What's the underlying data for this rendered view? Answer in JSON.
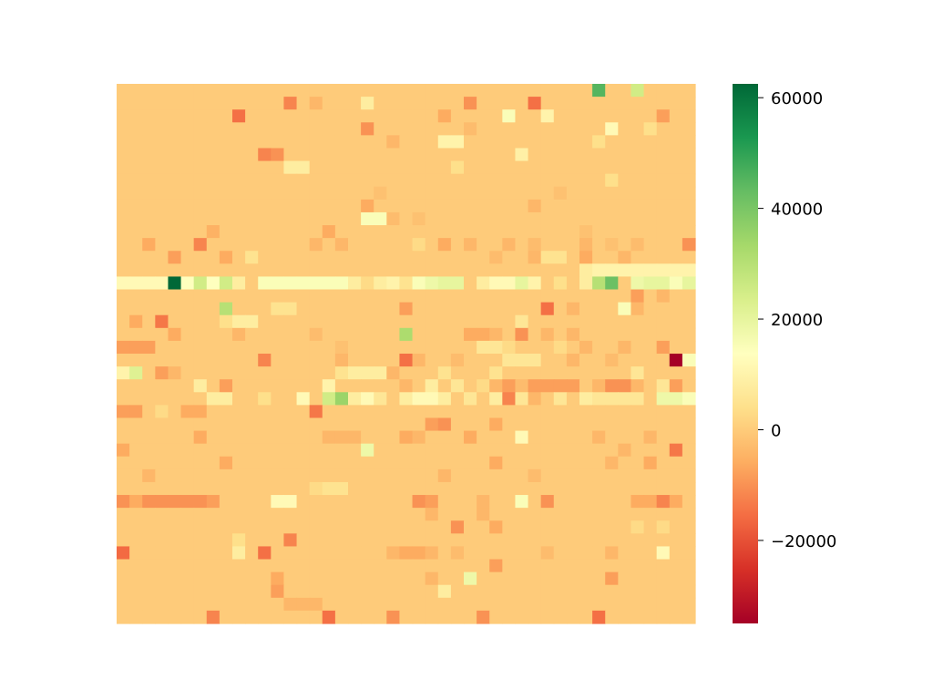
{
  "chart_data": {
    "type": "heatmap",
    "title": "",
    "xlabel": "",
    "ylabel": "",
    "colormap": "RdYlGn",
    "value_range": [
      -35000,
      62500
    ],
    "colorbar": {
      "ticks": [
        60000,
        40000,
        20000,
        0,
        -20000
      ],
      "tick_labels": [
        "60000",
        "40000",
        "20000",
        "0",
        "−20000"
      ]
    },
    "grid": false,
    "legend": "colorbar-right",
    "n_rows": 42,
    "n_cols": 45,
    "base_value": 0,
    "cells": [
      [
        0,
        37,
        45000
      ],
      [
        0,
        40,
        25000
      ],
      [
        1,
        13,
        -12000
      ],
      [
        1,
        15,
        -4000
      ],
      [
        1,
        19,
        8000
      ],
      [
        1,
        27,
        -10000
      ],
      [
        1,
        32,
        -15000
      ],
      [
        2,
        9,
        -15000
      ],
      [
        2,
        25,
        -6000
      ],
      [
        2,
        30,
        15000
      ],
      [
        2,
        33,
        10000
      ],
      [
        2,
        42,
        -8000
      ],
      [
        3,
        19,
        -10000
      ],
      [
        3,
        27,
        -3000
      ],
      [
        3,
        38,
        12000
      ],
      [
        3,
        41,
        4000
      ],
      [
        4,
        21,
        -4000
      ],
      [
        4,
        25,
        10000
      ],
      [
        4,
        26,
        10000
      ],
      [
        4,
        37,
        4000
      ],
      [
        5,
        11,
        -12000
      ],
      [
        5,
        12,
        -10000
      ],
      [
        5,
        31,
        9000
      ],
      [
        6,
        13,
        8000
      ],
      [
        6,
        14,
        8000
      ],
      [
        6,
        26,
        4000
      ],
      [
        7,
        38,
        4000
      ],
      [
        8,
        20,
        -2000
      ],
      [
        8,
        34,
        -2000
      ],
      [
        9,
        19,
        -6000
      ],
      [
        9,
        32,
        -4000
      ],
      [
        10,
        19,
        15000
      ],
      [
        10,
        20,
        15000
      ],
      [
        10,
        21,
        -3000
      ],
      [
        10,
        23,
        -2000
      ],
      [
        11,
        7,
        -5000
      ],
      [
        11,
        16,
        -6000
      ],
      [
        11,
        36,
        -2000
      ],
      [
        12,
        2,
        -6000
      ],
      [
        12,
        6,
        -12000
      ],
      [
        12,
        15,
        -4000
      ],
      [
        12,
        17,
        -4000
      ],
      [
        12,
        23,
        3000
      ],
      [
        12,
        25,
        -6000
      ],
      [
        12,
        27,
        -4000
      ],
      [
        12,
        30,
        -4000
      ],
      [
        12,
        32,
        -3000
      ],
      [
        12,
        36,
        -4000
      ],
      [
        12,
        38,
        -2000
      ],
      [
        12,
        40,
        -3000
      ],
      [
        12,
        44,
        -10000
      ],
      [
        13,
        4,
        -8000
      ],
      [
        13,
        8,
        -6000
      ],
      [
        13,
        10,
        5000
      ],
      [
        13,
        29,
        -3000
      ],
      [
        13,
        32,
        -4000
      ],
      [
        13,
        33,
        5000
      ],
      [
        13,
        34,
        5000
      ],
      [
        13,
        36,
        -6000
      ],
      [
        13,
        39,
        -4000
      ],
      [
        14,
        36,
        8000
      ],
      [
        14,
        37,
        10000
      ],
      [
        14,
        38,
        10000
      ],
      [
        14,
        39,
        10000
      ],
      [
        14,
        40,
        10000
      ],
      [
        14,
        41,
        10000
      ],
      [
        14,
        42,
        10000
      ],
      [
        14,
        43,
        10000
      ],
      [
        14,
        44,
        10000
      ],
      [
        15,
        0,
        12000
      ],
      [
        15,
        1,
        12000
      ],
      [
        15,
        2,
        12000
      ],
      [
        15,
        3,
        12000
      ],
      [
        15,
        4,
        62500
      ],
      [
        15,
        5,
        14000
      ],
      [
        15,
        6,
        25000
      ],
      [
        15,
        7,
        14000
      ],
      [
        15,
        8,
        25000
      ],
      [
        15,
        9,
        8000
      ],
      [
        15,
        11,
        15000
      ],
      [
        15,
        12,
        15000
      ],
      [
        15,
        13,
        15000
      ],
      [
        15,
        14,
        15000
      ],
      [
        15,
        15,
        15000
      ],
      [
        15,
        16,
        15000
      ],
      [
        15,
        17,
        15000
      ],
      [
        15,
        18,
        8000
      ],
      [
        15,
        19,
        3000
      ],
      [
        15,
        20,
        8000
      ],
      [
        15,
        21,
        10000
      ],
      [
        15,
        22,
        5000
      ],
      [
        15,
        23,
        15000
      ],
      [
        15,
        24,
        18000
      ],
      [
        15,
        25,
        20000
      ],
      [
        15,
        26,
        20000
      ],
      [
        15,
        28,
        8000
      ],
      [
        15,
        29,
        12000
      ],
      [
        15,
        30,
        12000
      ],
      [
        15,
        31,
        20000
      ],
      [
        15,
        32,
        10000
      ],
      [
        15,
        34,
        4000
      ],
      [
        15,
        36,
        8000
      ],
      [
        15,
        37,
        30000
      ],
      [
        15,
        38,
        42000
      ],
      [
        15,
        40,
        18000
      ],
      [
        15,
        41,
        20000
      ],
      [
        15,
        42,
        20000
      ],
      [
        15,
        43,
        15000
      ],
      [
        15,
        44,
        20000
      ],
      [
        16,
        40,
        -8000
      ],
      [
        16,
        42,
        -4000
      ],
      [
        17,
        8,
        30000
      ],
      [
        17,
        12,
        5000
      ],
      [
        17,
        13,
        5000
      ],
      [
        17,
        22,
        -8000
      ],
      [
        17,
        33,
        -15000
      ],
      [
        17,
        35,
        -4000
      ],
      [
        17,
        39,
        15000
      ],
      [
        17,
        40,
        -4000
      ],
      [
        18,
        1,
        -6000
      ],
      [
        18,
        3,
        -14000
      ],
      [
        18,
        8,
        4000
      ],
      [
        18,
        9,
        8000
      ],
      [
        18,
        10,
        8000
      ],
      [
        18,
        31,
        6000
      ],
      [
        19,
        4,
        -6000
      ],
      [
        19,
        9,
        -4000
      ],
      [
        19,
        15,
        -3000
      ],
      [
        19,
        22,
        32000
      ],
      [
        19,
        27,
        -6000
      ],
      [
        19,
        28,
        -6000
      ],
      [
        19,
        29,
        -4000
      ],
      [
        19,
        31,
        -10000
      ],
      [
        19,
        33,
        -4000
      ],
      [
        19,
        35,
        -4000
      ],
      [
        20,
        0,
        -8000
      ],
      [
        20,
        1,
        -8000
      ],
      [
        20,
        2,
        -8000
      ],
      [
        20,
        17,
        -2000
      ],
      [
        20,
        28,
        6000
      ],
      [
        20,
        29,
        6000
      ],
      [
        20,
        30,
        3000
      ],
      [
        20,
        34,
        3000
      ],
      [
        20,
        36,
        -4000
      ],
      [
        20,
        39,
        -4000
      ],
      [
        20,
        42,
        -8000
      ],
      [
        21,
        11,
        -12000
      ],
      [
        21,
        17,
        -4000
      ],
      [
        21,
        22,
        -15000
      ],
      [
        21,
        23,
        -4000
      ],
      [
        21,
        26,
        -3000
      ],
      [
        21,
        30,
        6000
      ],
      [
        21,
        31,
        6000
      ],
      [
        21,
        32,
        6000
      ],
      [
        21,
        35,
        -4000
      ],
      [
        21,
        38,
        -3000
      ],
      [
        21,
        43,
        -35000
      ],
      [
        21,
        44,
        15000
      ],
      [
        22,
        0,
        10000
      ],
      [
        22,
        1,
        22000
      ],
      [
        22,
        3,
        -8000
      ],
      [
        22,
        4,
        -4000
      ],
      [
        22,
        17,
        5000
      ],
      [
        22,
        18,
        8000
      ],
      [
        22,
        19,
        8000
      ],
      [
        22,
        20,
        8000
      ],
      [
        22,
        21,
        -4000
      ],
      [
        22,
        25,
        5000
      ],
      [
        22,
        29,
        5000
      ],
      [
        22,
        40,
        6000
      ],
      [
        23,
        6,
        8000
      ],
      [
        23,
        8,
        -8000
      ],
      [
        23,
        16,
        10000
      ],
      [
        23,
        22,
        -4000
      ],
      [
        23,
        24,
        8000
      ],
      [
        23,
        26,
        6000
      ],
      [
        23,
        28,
        3000
      ],
      [
        23,
        29,
        -4000
      ],
      [
        23,
        30,
        -8000
      ],
      [
        23,
        31,
        -3000
      ],
      [
        23,
        32,
        -8000
      ],
      [
        23,
        33,
        -8000
      ],
      [
        23,
        34,
        -8000
      ],
      [
        23,
        35,
        -8000
      ],
      [
        23,
        37,
        -4000
      ],
      [
        23,
        38,
        -10000
      ],
      [
        23,
        39,
        -10000
      ],
      [
        23,
        40,
        -4000
      ],
      [
        23,
        42,
        6000
      ],
      [
        23,
        43,
        -8000
      ],
      [
        24,
        7,
        8000
      ],
      [
        24,
        8,
        8000
      ],
      [
        24,
        11,
        4000
      ],
      [
        24,
        14,
        12000
      ],
      [
        24,
        16,
        25000
      ],
      [
        24,
        17,
        35000
      ],
      [
        24,
        18,
        8000
      ],
      [
        24,
        19,
        12000
      ],
      [
        24,
        20,
        6000
      ],
      [
        24,
        22,
        8000
      ],
      [
        24,
        23,
        12000
      ],
      [
        24,
        24,
        12000
      ],
      [
        24,
        25,
        8000
      ],
      [
        24,
        27,
        6000
      ],
      [
        24,
        29,
        8000
      ],
      [
        24,
        30,
        -12000
      ],
      [
        24,
        31,
        6000
      ],
      [
        24,
        32,
        -4000
      ],
      [
        24,
        34,
        6000
      ],
      [
        24,
        36,
        8000
      ],
      [
        24,
        37,
        6000
      ],
      [
        24,
        38,
        6000
      ],
      [
        24,
        39,
        6000
      ],
      [
        24,
        40,
        6000
      ],
      [
        24,
        42,
        18000
      ],
      [
        24,
        43,
        18000
      ],
      [
        24,
        44,
        15000
      ],
      [
        25,
        0,
        -8000
      ],
      [
        25,
        1,
        -8000
      ],
      [
        25,
        3,
        3000
      ],
      [
        25,
        5,
        -6000
      ],
      [
        25,
        6,
        -6000
      ],
      [
        25,
        15,
        -14000
      ],
      [
        26,
        24,
        -8000
      ],
      [
        26,
        25,
        -10000
      ],
      [
        26,
        29,
        -6000
      ],
      [
        27,
        6,
        -6000
      ],
      [
        27,
        16,
        -4000
      ],
      [
        27,
        17,
        -4000
      ],
      [
        27,
        18,
        -4000
      ],
      [
        27,
        22,
        -6000
      ],
      [
        27,
        23,
        -4000
      ],
      [
        27,
        27,
        -6000
      ],
      [
        27,
        31,
        12000
      ],
      [
        27,
        37,
        -4000
      ],
      [
        27,
        41,
        -4000
      ],
      [
        28,
        0,
        -6000
      ],
      [
        28,
        19,
        18000
      ],
      [
        28,
        39,
        -4000
      ],
      [
        28,
        43,
        -14000
      ],
      [
        29,
        8,
        -6000
      ],
      [
        29,
        29,
        -6000
      ],
      [
        29,
        38,
        -4000
      ],
      [
        29,
        41,
        -6000
      ],
      [
        30,
        2,
        -4000
      ],
      [
        30,
        25,
        -4000
      ],
      [
        30,
        32,
        -3000
      ],
      [
        31,
        15,
        3000
      ],
      [
        31,
        16,
        5000
      ],
      [
        31,
        17,
        5000
      ],
      [
        32,
        0,
        -10000
      ],
      [
        32,
        1,
        -6000
      ],
      [
        32,
        2,
        -10000
      ],
      [
        32,
        3,
        -10000
      ],
      [
        32,
        4,
        -10000
      ],
      [
        32,
        5,
        -10000
      ],
      [
        32,
        6,
        -10000
      ],
      [
        32,
        7,
        -8000
      ],
      [
        32,
        12,
        12000
      ],
      [
        32,
        13,
        12000
      ],
      [
        32,
        23,
        -10000
      ],
      [
        32,
        24,
        -8000
      ],
      [
        32,
        28,
        -4000
      ],
      [
        32,
        31,
        15000
      ],
      [
        32,
        33,
        -10000
      ],
      [
        32,
        40,
        -6000
      ],
      [
        32,
        41,
        -6000
      ],
      [
        32,
        42,
        -12000
      ],
      [
        32,
        43,
        -6000
      ],
      [
        33,
        24,
        -4000
      ],
      [
        33,
        28,
        -4000
      ],
      [
        34,
        26,
        -10000
      ],
      [
        34,
        29,
        -6000
      ],
      [
        34,
        40,
        3000
      ],
      [
        34,
        42,
        3000
      ],
      [
        35,
        9,
        4000
      ],
      [
        35,
        13,
        -12000
      ],
      [
        36,
        0,
        -16000
      ],
      [
        36,
        9,
        8000
      ],
      [
        36,
        11,
        -15000
      ],
      [
        36,
        21,
        -4000
      ],
      [
        36,
        22,
        -6000
      ],
      [
        36,
        23,
        -6000
      ],
      [
        36,
        24,
        -4000
      ],
      [
        36,
        26,
        -3000
      ],
      [
        36,
        33,
        -3000
      ],
      [
        36,
        38,
        -4000
      ],
      [
        36,
        42,
        12000
      ],
      [
        37,
        29,
        -8000
      ],
      [
        38,
        12,
        -6000
      ],
      [
        38,
        24,
        -4000
      ],
      [
        38,
        27,
        18000
      ],
      [
        38,
        38,
        -8000
      ],
      [
        39,
        12,
        -8000
      ],
      [
        39,
        25,
        8000
      ],
      [
        40,
        13,
        -4000
      ],
      [
        40,
        14,
        -4000
      ],
      [
        40,
        15,
        -4000
      ],
      [
        41,
        7,
        -12000
      ],
      [
        41,
        16,
        -15000
      ],
      [
        41,
        21,
        -10000
      ],
      [
        41,
        28,
        -10000
      ],
      [
        41,
        37,
        -15000
      ]
    ]
  }
}
